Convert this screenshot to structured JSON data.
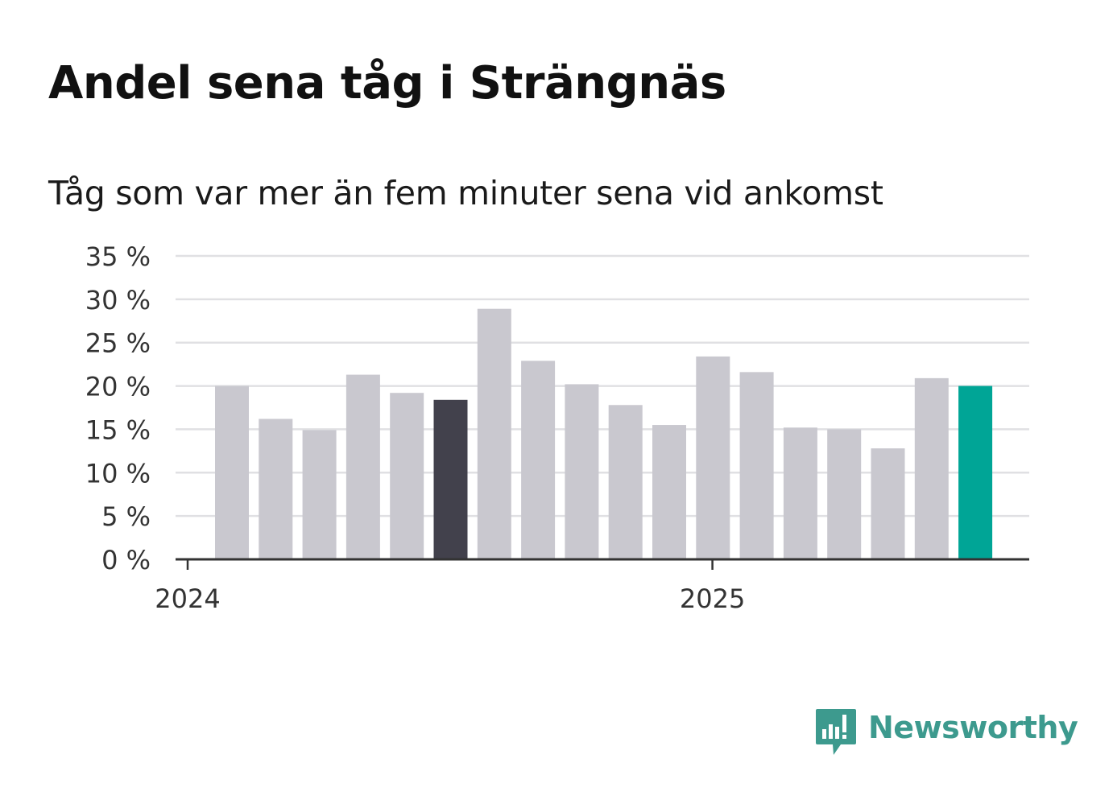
{
  "header": {
    "title": "Andel sena tåg i Strängnäs",
    "subtitle": "Tåg som var mer än fem minuter sena vid ankomst"
  },
  "chart_data": {
    "type": "bar",
    "categories": [
      "2024-01",
      "2024-02",
      "2024-03",
      "2024-04",
      "2024-05",
      "2024-06",
      "2024-07",
      "2024-08",
      "2024-09",
      "2024-10",
      "2024-11",
      "2024-12",
      "2025-01",
      "2025-02",
      "2025-03",
      "2025-04",
      "2025-05",
      "2025-06"
    ],
    "values": [
      20.0,
      16.2,
      14.9,
      21.3,
      19.2,
      18.4,
      28.9,
      22.9,
      20.2,
      17.8,
      15.5,
      23.4,
      21.6,
      15.2,
      15.0,
      12.8,
      20.9,
      20.0
    ],
    "ylim": [
      0,
      35
    ],
    "yticks": [
      0,
      5,
      10,
      15,
      20,
      25,
      30,
      35
    ],
    "ytick_labels": [
      "0 %",
      "5 %",
      "10 %",
      "15 %",
      "20 %",
      "25 %",
      "30 %",
      "35 %"
    ],
    "xtick_labels": [
      {
        "label": "2024",
        "category": "2024-01"
      },
      {
        "label": "2025",
        "category": "2025-01"
      }
    ],
    "grid": true,
    "colors": {
      "default": "#c9c8cf",
      "highlight_dark": "#42414c",
      "highlight_latest": "#00a596",
      "grid": "#e0e0e3",
      "axis": "#333333"
    },
    "highlight": {
      "2024-06": "highlight_dark",
      "2025-06": "highlight_latest"
    }
  },
  "footer": {
    "logo_text": "Newsworthy",
    "logo_icon": "newsworthy-chart-bubble-icon",
    "logo_color": "#3d9a8e"
  }
}
